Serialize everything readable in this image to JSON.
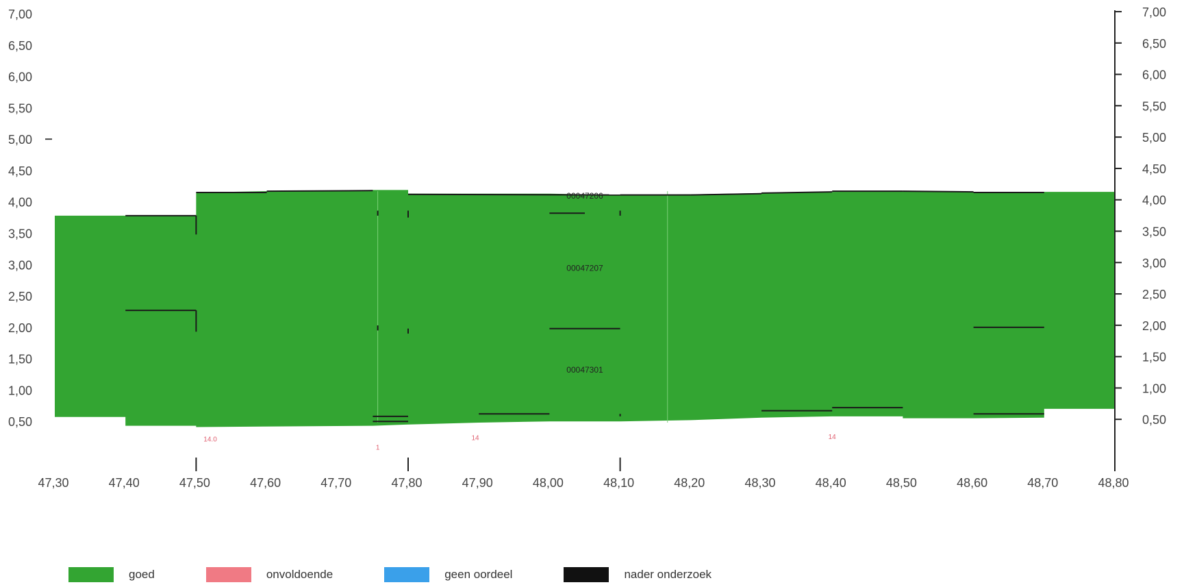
{
  "chart_data": {
    "type": "area",
    "xlim": [
      47.3,
      48.8
    ],
    "ylim": [
      0.0,
      7.0
    ],
    "x_ticks": [
      "47,30",
      "47,40",
      "47,50",
      "47,60",
      "47,70",
      "47,80",
      "47,90",
      "48,00",
      "48,10",
      "48,20",
      "48,30",
      "48,40",
      "48,50",
      "48,60",
      "48,70",
      "48,80"
    ],
    "y_ticks_left": [
      "0,50",
      "1,00",
      "1,50",
      "2,00",
      "2,50",
      "3,00",
      "3,50",
      "4,00",
      "4,50",
      "5,00",
      "5,50",
      "6,00",
      "6,50",
      "7,00"
    ],
    "y_ticks_right": [
      "0,50",
      "1,00",
      "1,50",
      "2,00",
      "2,50",
      "3,00",
      "3,50",
      "4,00",
      "4,50",
      "5,00",
      "5,50",
      "6,00",
      "6,50",
      "7,00"
    ],
    "x_major_markers": [
      47.5,
      47.8,
      48.1,
      48.8
    ],
    "series": [
      {
        "name": "goed",
        "color": "#33a532",
        "top": [
          [
            47.3,
            3.78
          ],
          [
            47.4,
            3.78
          ],
          [
            47.5,
            3.78
          ],
          [
            47.5,
            4.15
          ],
          [
            47.6,
            4.17
          ],
          [
            47.7,
            4.18
          ],
          [
            47.75,
            4.19
          ],
          [
            47.8,
            4.19
          ],
          [
            47.8,
            4.13
          ],
          [
            48.0,
            4.13
          ],
          [
            48.1,
            4.11
          ],
          [
            48.2,
            4.12
          ],
          [
            48.3,
            4.14
          ],
          [
            48.4,
            4.16
          ],
          [
            48.5,
            4.17
          ],
          [
            48.6,
            4.16
          ],
          [
            48.7,
            4.16
          ],
          [
            48.8,
            4.16
          ]
        ],
        "bottom": [
          [
            47.3,
            0.57
          ],
          [
            47.4,
            0.57
          ],
          [
            47.4,
            0.43
          ],
          [
            47.5,
            0.43
          ],
          [
            47.5,
            0.41
          ],
          [
            47.75,
            0.43
          ],
          [
            47.8,
            0.45
          ],
          [
            47.9,
            0.48
          ],
          [
            48.0,
            0.5
          ],
          [
            48.1,
            0.5
          ],
          [
            48.2,
            0.52
          ],
          [
            48.3,
            0.56
          ],
          [
            48.4,
            0.58
          ],
          [
            48.5,
            0.58
          ],
          [
            48.5,
            0.55
          ],
          [
            48.6,
            0.55
          ],
          [
            48.7,
            0.56
          ],
          [
            48.7,
            0.7
          ],
          [
            48.8,
            0.7
          ]
        ]
      }
    ],
    "segments": [
      [
        47.4,
        3.78,
        47.5,
        3.78
      ],
      [
        47.5,
        4.15,
        47.6,
        4.15
      ],
      [
        47.6,
        4.17,
        47.75,
        4.18
      ],
      [
        47.8,
        4.12,
        48.1,
        4.11
      ],
      [
        48.1,
        4.11,
        48.2,
        4.11
      ],
      [
        48.2,
        4.11,
        48.3,
        4.13
      ],
      [
        48.3,
        4.14,
        48.4,
        4.16
      ],
      [
        48.4,
        4.17,
        48.5,
        4.17
      ],
      [
        48.5,
        4.17,
        48.6,
        4.16
      ],
      [
        48.6,
        4.15,
        48.7,
        4.15
      ],
      [
        47.4,
        2.27,
        47.5,
        2.27
      ],
      [
        48.0,
        1.98,
        48.1,
        1.98
      ],
      [
        48.6,
        2.0,
        48.7,
        2.0
      ],
      [
        48.0,
        3.82,
        48.05,
        3.82
      ],
      [
        47.75,
        0.58,
        47.8,
        0.58
      ],
      [
        47.75,
        0.5,
        47.8,
        0.5
      ],
      [
        47.9,
        0.62,
        48.0,
        0.62
      ],
      [
        48.3,
        0.67,
        48.4,
        0.67
      ],
      [
        48.4,
        0.72,
        48.5,
        0.72
      ],
      [
        48.6,
        0.62,
        48.7,
        0.62
      ]
    ],
    "vertical_marks": [
      [
        47.5,
        3.48,
        3.78
      ],
      [
        47.5,
        1.93,
        2.27
      ],
      [
        47.757,
        3.78,
        3.86
      ],
      [
        47.8,
        3.75,
        3.86
      ],
      [
        47.757,
        1.95,
        2.03
      ],
      [
        47.8,
        1.9,
        1.98
      ],
      [
        48.1,
        3.78,
        3.86
      ],
      [
        48.1,
        0.58,
        0.62
      ]
    ],
    "inner_labels": [
      {
        "text": "00047206",
        "x": 48.05,
        "y": 4.05
      },
      {
        "text": "00047207",
        "x": 48.05,
        "y": 2.9
      },
      {
        "text": "00047301",
        "x": 48.05,
        "y": 1.28
      }
    ],
    "marker_labels": [
      {
        "text": "14.0",
        "x": 47.52,
        "y": 0.18,
        "color": "#e06070"
      },
      {
        "text": "1",
        "x": 47.757,
        "y": 0.05,
        "color": "#e06070"
      },
      {
        "text": "14",
        "x": 47.895,
        "y": 0.2,
        "color": "#e06070"
      },
      {
        "text": "14",
        "x": 48.4,
        "y": 0.22,
        "color": "#e06070"
      }
    ],
    "legend": {
      "placement": "bottom-left",
      "items": [
        {
          "label": "goed",
          "color": "#33a532"
        },
        {
          "label": "onvoldoende",
          "color": "#f07a84"
        },
        {
          "label": "geen oordeel",
          "color": "#3aa0ea"
        },
        {
          "label": "nader onderzoek",
          "color": "#111111"
        }
      ]
    }
  }
}
